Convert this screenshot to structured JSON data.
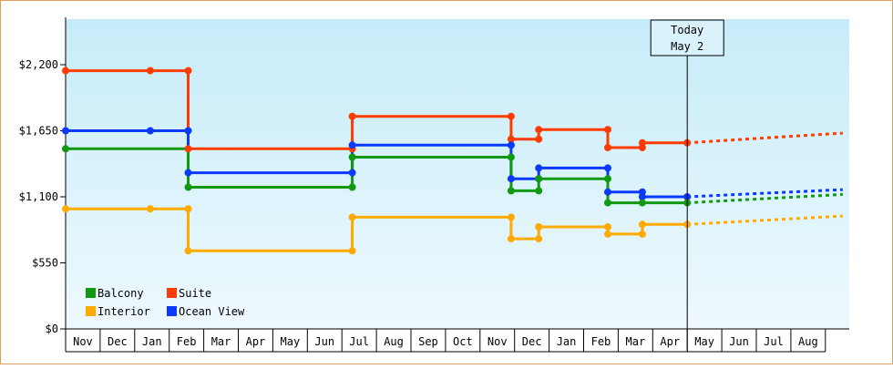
{
  "chart_data": {
    "type": "line",
    "title": "",
    "xlabel": "",
    "ylabel": "",
    "ylim": [
      0,
      2500
    ],
    "y_ticks": [
      {
        "value": 0,
        "label": "$0"
      },
      {
        "value": 550,
        "label": "$550"
      },
      {
        "value": 1100,
        "label": "$1,100"
      },
      {
        "value": 1650,
        "label": "$1,650"
      },
      {
        "value": 2200,
        "label": "$2,200"
      }
    ],
    "x_months": [
      "Nov",
      "Dec",
      "Jan",
      "Feb",
      "Mar",
      "Apr",
      "May",
      "Jun",
      "Jul",
      "Aug",
      "Sep",
      "Oct",
      "Nov",
      "Dec",
      "Jan",
      "Feb",
      "Mar",
      "Apr",
      "May",
      "Jun",
      "Jul",
      "Aug"
    ],
    "x_range": [
      0,
      22.5
    ],
    "today": {
      "x": 18.0,
      "label_line1": "Today",
      "label_line2": "May 2"
    },
    "grid": false,
    "legend_position": "bottom-left",
    "series": [
      {
        "name": "Suite",
        "color": "#ff3b00",
        "points": [
          [
            0,
            2150
          ],
          [
            2.45,
            2150
          ],
          [
            3.55,
            2150
          ],
          [
            3.55,
            1500
          ],
          [
            8.3,
            1500
          ],
          [
            8.3,
            1770
          ],
          [
            12.9,
            1770
          ],
          [
            12.9,
            1580
          ],
          [
            13.7,
            1580
          ],
          [
            13.7,
            1660
          ],
          [
            15.7,
            1660
          ],
          [
            15.7,
            1510
          ],
          [
            16.7,
            1510
          ],
          [
            16.7,
            1550
          ],
          [
            18.0,
            1550
          ]
        ],
        "markers": [
          [
            0,
            2150
          ],
          [
            2.45,
            2150
          ],
          [
            3.55,
            2150
          ],
          [
            3.55,
            1500
          ],
          [
            8.3,
            1500
          ],
          [
            8.3,
            1770
          ],
          [
            12.9,
            1770
          ],
          [
            12.9,
            1580
          ],
          [
            13.7,
            1580
          ],
          [
            13.7,
            1660
          ],
          [
            15.7,
            1660
          ],
          [
            15.7,
            1510
          ],
          [
            16.7,
            1510
          ],
          [
            16.7,
            1550
          ],
          [
            18.0,
            1550
          ]
        ],
        "projection": [
          [
            18.0,
            1550
          ],
          [
            22.5,
            1630
          ]
        ]
      },
      {
        "name": "Ocean View",
        "color": "#0a3aff",
        "points": [
          [
            0,
            1650
          ],
          [
            2.45,
            1650
          ],
          [
            3.55,
            1650
          ],
          [
            3.55,
            1300
          ],
          [
            8.3,
            1300
          ],
          [
            8.3,
            1530
          ],
          [
            12.9,
            1530
          ],
          [
            12.9,
            1250
          ],
          [
            13.7,
            1250
          ],
          [
            13.7,
            1340
          ],
          [
            15.7,
            1340
          ],
          [
            15.7,
            1140
          ],
          [
            16.7,
            1140
          ],
          [
            16.7,
            1100
          ],
          [
            18.0,
            1100
          ]
        ],
        "markers": [
          [
            0,
            1650
          ],
          [
            2.45,
            1650
          ],
          [
            3.55,
            1650
          ],
          [
            3.55,
            1300
          ],
          [
            8.3,
            1300
          ],
          [
            8.3,
            1530
          ],
          [
            12.9,
            1530
          ],
          [
            12.9,
            1250
          ],
          [
            13.7,
            1250
          ],
          [
            13.7,
            1340
          ],
          [
            15.7,
            1340
          ],
          [
            15.7,
            1140
          ],
          [
            16.7,
            1140
          ],
          [
            16.7,
            1100
          ],
          [
            18.0,
            1100
          ]
        ],
        "projection": [
          [
            18.0,
            1100
          ],
          [
            22.5,
            1160
          ]
        ]
      },
      {
        "name": "Balcony",
        "color": "#119911",
        "points": [
          [
            0,
            1500
          ],
          [
            3.55,
            1500
          ],
          [
            3.55,
            1180
          ],
          [
            8.3,
            1180
          ],
          [
            8.3,
            1430
          ],
          [
            12.9,
            1430
          ],
          [
            12.9,
            1150
          ],
          [
            13.7,
            1150
          ],
          [
            13.7,
            1250
          ],
          [
            15.7,
            1250
          ],
          [
            15.7,
            1050
          ],
          [
            18.0,
            1050
          ]
        ],
        "markers": [
          [
            0,
            1500
          ],
          [
            3.55,
            1180
          ],
          [
            8.3,
            1180
          ],
          [
            8.3,
            1430
          ],
          [
            12.9,
            1430
          ],
          [
            12.9,
            1150
          ],
          [
            13.7,
            1150
          ],
          [
            13.7,
            1250
          ],
          [
            15.7,
            1250
          ],
          [
            15.7,
            1050
          ],
          [
            16.7,
            1050
          ],
          [
            18.0,
            1050
          ]
        ],
        "projection": [
          [
            18.0,
            1050
          ],
          [
            22.5,
            1120
          ]
        ]
      },
      {
        "name": "Interior",
        "color": "#ffaa00",
        "points": [
          [
            0,
            1000
          ],
          [
            3.55,
            1000
          ],
          [
            3.55,
            650
          ],
          [
            8.3,
            650
          ],
          [
            8.3,
            930
          ],
          [
            12.9,
            930
          ],
          [
            12.9,
            750
          ],
          [
            13.7,
            750
          ],
          [
            13.7,
            850
          ],
          [
            15.7,
            850
          ],
          [
            15.7,
            790
          ],
          [
            16.7,
            790
          ],
          [
            16.7,
            870
          ],
          [
            18.0,
            870
          ]
        ],
        "markers": [
          [
            0,
            1000
          ],
          [
            2.45,
            1000
          ],
          [
            3.55,
            1000
          ],
          [
            3.55,
            650
          ],
          [
            8.3,
            650
          ],
          [
            8.3,
            930
          ],
          [
            12.9,
            930
          ],
          [
            12.9,
            750
          ],
          [
            13.7,
            750
          ],
          [
            13.7,
            850
          ],
          [
            15.7,
            850
          ],
          [
            15.7,
            790
          ],
          [
            16.7,
            790
          ],
          [
            16.7,
            870
          ],
          [
            18.0,
            870
          ]
        ],
        "projection": [
          [
            18.0,
            870
          ],
          [
            22.5,
            940
          ]
        ]
      }
    ],
    "legend": [
      {
        "name": "Balcony",
        "color": "#119911"
      },
      {
        "name": "Suite",
        "color": "#ff3b00"
      },
      {
        "name": "Interior",
        "color": "#ffaa00"
      },
      {
        "name": "Ocean View",
        "color": "#0a3aff"
      }
    ]
  }
}
